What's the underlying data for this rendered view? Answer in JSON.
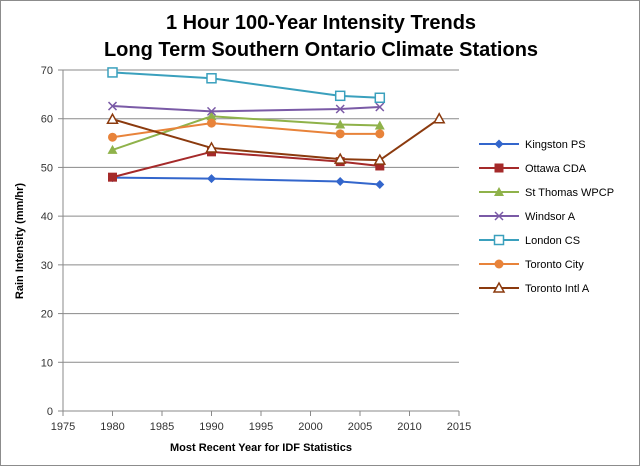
{
  "chart_data": {
    "type": "line",
    "title": [
      "1 Hour 100-Year Intensity Trends",
      "Long Term Southern Ontario Climate Stations"
    ],
    "xlabel": "Most Recent Year for IDF Statistics",
    "ylabel": "Rain Intensity (mm/hr)",
    "xlim": [
      1975,
      2015
    ],
    "ylim": [
      0,
      70
    ],
    "xticks": [
      1975,
      1980,
      1985,
      1990,
      1995,
      2000,
      2005,
      2010,
      2015
    ],
    "yticks": [
      0,
      10,
      20,
      30,
      40,
      50,
      60,
      70
    ],
    "grid": "horizontal",
    "legend_position": "right",
    "series": [
      {
        "name": "Kingston PS",
        "color": "#3366cc",
        "marker": "diamond",
        "x": [
          1980,
          1990,
          2003,
          2007
        ],
        "y": [
          47.9,
          47.7,
          47.1,
          46.5
        ]
      },
      {
        "name": "Ottawa CDA",
        "color": "#a52a2a",
        "marker": "square",
        "x": [
          1980,
          1990,
          2003,
          2007
        ],
        "y": [
          48.0,
          53.2,
          51.2,
          50.3
        ]
      },
      {
        "name": "St Thomas WPCP",
        "color": "#8fb24a",
        "marker": "triangle",
        "x": [
          1980,
          1990,
          2003,
          2007
        ],
        "y": [
          53.6,
          60.5,
          58.8,
          58.6
        ]
      },
      {
        "name": "Windsor A",
        "color": "#7a5aa6",
        "marker": "x",
        "x": [
          1980,
          1990,
          2003,
          2007
        ],
        "y": [
          62.6,
          61.5,
          62.0,
          62.4
        ]
      },
      {
        "name": "London CS",
        "color": "#3aa0bd",
        "marker": "square-open",
        "x": [
          1980,
          1990,
          2003,
          2007
        ],
        "y": [
          69.5,
          68.3,
          64.7,
          64.3
        ]
      },
      {
        "name": "Toronto City",
        "color": "#e8833a",
        "marker": "circle",
        "x": [
          1980,
          1990,
          2003,
          2007
        ],
        "y": [
          56.2,
          59.1,
          56.9,
          56.9
        ]
      },
      {
        "name": "Toronto Intl A",
        "color": "#8b3a0e",
        "marker": "triangle-open",
        "x": [
          1980,
          1990,
          2003,
          2007,
          2013
        ],
        "y": [
          59.9,
          54.0,
          51.7,
          51.5,
          60.0
        ]
      }
    ]
  }
}
